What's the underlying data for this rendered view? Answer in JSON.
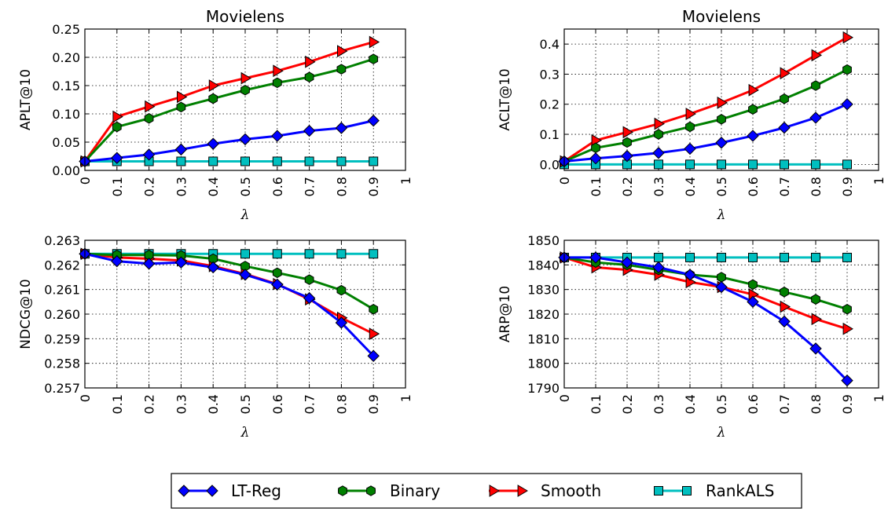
{
  "chart_data": [
    {
      "type": "line",
      "title": "Movielens",
      "xlabel": "λ",
      "ylabel": "APLT@10",
      "x_ticks": [
        "0",
        "0.1",
        "0.2",
        "0.3",
        "0.4",
        "0.5",
        "0.6",
        "0.7",
        "0.8",
        "0.9",
        "1"
      ],
      "y_ticks": [
        "0.00",
        "0.05",
        "0.10",
        "0.15",
        "0.20",
        "0.25"
      ],
      "xlim": [
        0,
        1
      ],
      "ylim": [
        0,
        0.25
      ],
      "grid": true,
      "x": [
        0,
        0.1,
        0.2,
        0.3,
        0.4,
        0.5,
        0.6,
        0.7,
        0.8,
        0.9
      ],
      "series": [
        {
          "name": "LT-Reg",
          "values": [
            0.016,
            0.022,
            0.028,
            0.037,
            0.047,
            0.055,
            0.061,
            0.07,
            0.075,
            0.088
          ]
        },
        {
          "name": "Binary",
          "values": [
            0.016,
            0.077,
            0.092,
            0.112,
            0.127,
            0.142,
            0.155,
            0.165,
            0.179,
            0.197
          ]
        },
        {
          "name": "Smooth",
          "values": [
            0.016,
            0.095,
            0.113,
            0.13,
            0.15,
            0.163,
            0.176,
            0.192,
            0.211,
            0.227
          ]
        },
        {
          "name": "RankALS",
          "values": [
            0.016,
            0.016,
            0.016,
            0.016,
            0.016,
            0.016,
            0.016,
            0.016,
            0.016,
            0.016
          ]
        }
      ]
    },
    {
      "type": "line",
      "title": "Movielens",
      "xlabel": "λ",
      "ylabel": "ACLT@10",
      "x_ticks": [
        "0",
        "0.1",
        "0.2",
        "0.3",
        "0.4",
        "0.5",
        "0.6",
        "0.7",
        "0.8",
        "0.9",
        "1"
      ],
      "y_ticks": [
        "0.0",
        "0.1",
        "0.2",
        "0.3",
        "0.4"
      ],
      "xlim": [
        0,
        1
      ],
      "ylim": [
        -0.02,
        0.45
      ],
      "grid": true,
      "x": [
        0,
        0.1,
        0.2,
        0.3,
        0.4,
        0.5,
        0.6,
        0.7,
        0.8,
        0.9
      ],
      "series": [
        {
          "name": "LT-Reg",
          "values": [
            0.01,
            0.02,
            0.028,
            0.038,
            0.052,
            0.072,
            0.095,
            0.122,
            0.155,
            0.2
          ]
        },
        {
          "name": "Binary",
          "values": [
            0.01,
            0.055,
            0.073,
            0.1,
            0.125,
            0.15,
            0.183,
            0.218,
            0.262,
            0.315
          ]
        },
        {
          "name": "Smooth",
          "values": [
            0.01,
            0.08,
            0.107,
            0.135,
            0.168,
            0.205,
            0.247,
            0.303,
            0.363,
            0.422
          ]
        },
        {
          "name": "RankALS",
          "values": [
            0.0,
            0.0,
            0.0,
            0.0,
            0.0,
            0.0,
            0.0,
            0.0,
            0.0,
            0.0
          ]
        }
      ]
    },
    {
      "type": "line",
      "title": "",
      "xlabel": "λ",
      "ylabel": "NDCG@10",
      "x_ticks": [
        "0",
        "0.1",
        "0.2",
        "0.3",
        "0.4",
        "0.5",
        "0.6",
        "0.7",
        "0.8",
        "0.9",
        "1"
      ],
      "y_ticks": [
        "0.257",
        "0.258",
        "0.259",
        "0.260",
        "0.261",
        "0.262",
        "0.263"
      ],
      "xlim": [
        0,
        1
      ],
      "ylim": [
        0.257,
        0.263
      ],
      "grid": true,
      "x": [
        0,
        0.1,
        0.2,
        0.3,
        0.4,
        0.5,
        0.6,
        0.7,
        0.8,
        0.9
      ],
      "series": [
        {
          "name": "LT-Reg",
          "values": [
            0.26245,
            0.26215,
            0.26205,
            0.2621,
            0.2619,
            0.2616,
            0.2612,
            0.26065,
            0.25965,
            0.2583
          ]
        },
        {
          "name": "Binary",
          "values": [
            0.26245,
            0.2624,
            0.2624,
            0.26238,
            0.26225,
            0.26195,
            0.26168,
            0.2614,
            0.26097,
            0.2602
          ]
        },
        {
          "name": "Smooth",
          "values": [
            0.26245,
            0.2623,
            0.26225,
            0.26218,
            0.26195,
            0.26163,
            0.26122,
            0.2606,
            0.25985,
            0.2592
          ]
        },
        {
          "name": "RankALS",
          "values": [
            0.26245,
            0.26245,
            0.26245,
            0.26245,
            0.26245,
            0.26245,
            0.26245,
            0.26245,
            0.26245,
            0.26245
          ]
        }
      ]
    },
    {
      "type": "line",
      "title": "",
      "xlabel": "λ",
      "ylabel": "ARP@10",
      "x_ticks": [
        "0",
        "0.1",
        "0.2",
        "0.3",
        "0.4",
        "0.5",
        "0.6",
        "0.7",
        "0.8",
        "0.9",
        "1"
      ],
      "y_ticks": [
        "1790",
        "1800",
        "1810",
        "1820",
        "1830",
        "1840",
        "1850"
      ],
      "xlim": [
        0,
        1
      ],
      "ylim": [
        1790,
        1850
      ],
      "grid": true,
      "x": [
        0,
        0.1,
        0.2,
        0.3,
        0.4,
        0.5,
        0.6,
        0.7,
        0.8,
        0.9
      ],
      "series": [
        {
          "name": "LT-Reg",
          "values": [
            1843,
            1843,
            1841,
            1839,
            1836,
            1831,
            1825,
            1817,
            1806,
            1793
          ]
        },
        {
          "name": "Binary",
          "values": [
            1843,
            1841,
            1840,
            1838,
            1836,
            1835,
            1832,
            1829,
            1826,
            1822
          ]
        },
        {
          "name": "Smooth",
          "values": [
            1843,
            1839,
            1838,
            1836,
            1833,
            1831,
            1828,
            1823,
            1818,
            1814
          ]
        },
        {
          "name": "RankALS",
          "values": [
            1843,
            1843,
            1843,
            1843,
            1843,
            1843,
            1843,
            1843,
            1843,
            1843
          ]
        }
      ]
    }
  ],
  "legend": {
    "placement": "bottom-center",
    "items": [
      {
        "name": "LT-Reg",
        "color": "#0000ff",
        "marker": "diamond"
      },
      {
        "name": "Binary",
        "color": "#008000",
        "marker": "hexagon"
      },
      {
        "name": "Smooth",
        "color": "#ff0000",
        "marker": "triangle-right"
      },
      {
        "name": "RankALS",
        "color": "#00bfbf",
        "marker": "square"
      }
    ]
  },
  "series_styles": {
    "LT-Reg": {
      "color": "#0000ff",
      "marker": "diamond"
    },
    "Binary": {
      "color": "#008000",
      "marker": "hexagon"
    },
    "Smooth": {
      "color": "#ff0000",
      "marker": "triangle-right"
    },
    "RankALS": {
      "color": "#00bfbf",
      "marker": "square"
    }
  }
}
